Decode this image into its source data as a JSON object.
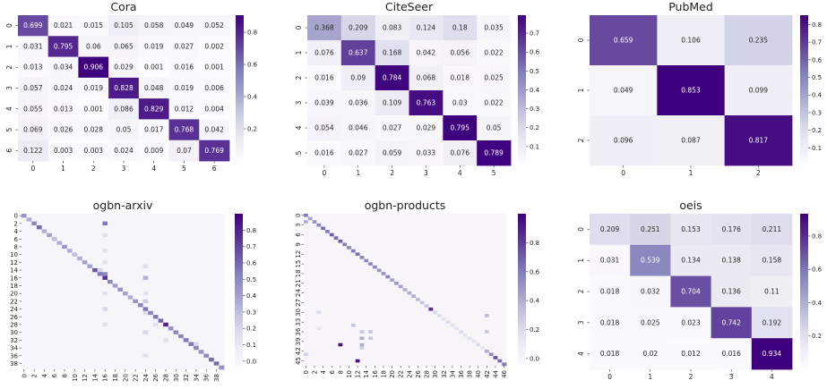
{
  "colors": {
    "low": "#fcfbfd",
    "high": "#3f007d"
  },
  "chart_data": [
    {
      "type": "heatmap",
      "title": "Cora",
      "x_labels": [
        "0",
        "1",
        "2",
        "3",
        "4",
        "5",
        "6"
      ],
      "y_labels": [
        "0",
        "1",
        "2",
        "3",
        "4",
        "5",
        "6"
      ],
      "show_values": true,
      "matrix": [
        [
          0.699,
          0.021,
          0.015,
          0.105,
          0.058,
          0.049,
          0.052
        ],
        [
          0.031,
          0.795,
          0.06,
          0.065,
          0.019,
          0.027,
          0.002
        ],
        [
          0.013,
          0.034,
          0.906,
          0.029,
          0.001,
          0.016,
          0.001
        ],
        [
          0.057,
          0.024,
          0.019,
          0.828,
          0.048,
          0.019,
          0.006
        ],
        [
          0.055,
          0.013,
          0.001,
          0.086,
          0.829,
          0.012,
          0.004
        ],
        [
          0.069,
          0.026,
          0.028,
          0.05,
          0.017,
          0.768,
          0.042
        ],
        [
          0.122,
          0.003,
          0.003,
          0.024,
          0.009,
          0.07,
          0.769
        ]
      ],
      "colorbar": {
        "range": [
          0.0,
          0.906
        ],
        "ticks": [
          "0.2",
          "0.4",
          "0.6",
          "0.8"
        ],
        "tick_values": [
          0.2,
          0.4,
          0.6,
          0.8
        ]
      }
    },
    {
      "type": "heatmap",
      "title": "CiteSeer",
      "x_labels": [
        "0",
        "1",
        "2",
        "3",
        "4",
        "5"
      ],
      "y_labels": [
        "0",
        "1",
        "2",
        "3",
        "4",
        "5"
      ],
      "show_values": true,
      "matrix": [
        [
          0.368,
          0.209,
          0.083,
          0.124,
          0.18,
          0.035
        ],
        [
          0.076,
          0.637,
          0.168,
          0.042,
          0.056,
          0.022
        ],
        [
          0.016,
          0.09,
          0.784,
          0.068,
          0.018,
          0.025
        ],
        [
          0.039,
          0.036,
          0.109,
          0.763,
          0.03,
          0.022
        ],
        [
          0.054,
          0.046,
          0.027,
          0.029,
          0.795,
          0.05
        ],
        [
          0.016,
          0.027,
          0.059,
          0.033,
          0.076,
          0.789
        ]
      ],
      "colorbar": {
        "range": [
          0.0,
          0.795
        ],
        "ticks": [
          "0.1",
          "0.2",
          "0.3",
          "0.4",
          "0.5",
          "0.6",
          "0.7"
        ],
        "tick_values": [
          0.1,
          0.2,
          0.3,
          0.4,
          0.5,
          0.6,
          0.7
        ]
      }
    },
    {
      "type": "heatmap",
      "title": "PubMed",
      "x_labels": [
        "0",
        "1",
        "2"
      ],
      "y_labels": [
        "0",
        "1",
        "2"
      ],
      "show_values": true,
      "matrix": [
        [
          0.659,
          0.106,
          0.235
        ],
        [
          0.049,
          0.853,
          0.099
        ],
        [
          0.096,
          0.087,
          0.817
        ]
      ],
      "colorbar": {
        "range": [
          0.0,
          0.853
        ],
        "ticks": [
          "0.1",
          "0.2",
          "0.3",
          "0.4",
          "0.5",
          "0.6",
          "0.7",
          "0.8"
        ],
        "tick_values": [
          0.1,
          0.2,
          0.3,
          0.4,
          0.5,
          0.6,
          0.7,
          0.8
        ]
      }
    },
    {
      "type": "heatmap",
      "title": "ogbn-arxiv",
      "size": 40,
      "x_labels": [
        "0",
        "2",
        "4",
        "6",
        "8",
        "10",
        "12",
        "14",
        "16",
        "18",
        "20",
        "22",
        "24",
        "26",
        "28",
        "30",
        "32",
        "34",
        "36",
        "38"
      ],
      "y_labels": [
        "0",
        "2",
        "4",
        "6",
        "8",
        "10",
        "12",
        "14",
        "16",
        "18",
        "20",
        "22",
        "24",
        "26",
        "28",
        "30",
        "32",
        "34",
        "36",
        "38"
      ],
      "label_step": 2,
      "show_values": false,
      "diagonal": [
        0.45,
        0.35,
        0.5,
        0.6,
        0.35,
        0.4,
        0.3,
        0.35,
        0.45,
        0.35,
        0.3,
        0.35,
        0.4,
        0.4,
        0.65,
        0.55,
        0.75,
        0.5,
        0.4,
        0.45,
        0.4,
        0.35,
        0.45,
        0.5,
        0.55,
        0.5,
        0.55,
        0.6,
        0.8,
        0.45,
        0.5,
        0.5,
        0.55,
        0.55,
        0.5,
        0.45,
        0.5,
        0.6,
        0.6,
        0.45
      ],
      "off_diagonal": [
        [
          2,
          16,
          0.55
        ],
        [
          5,
          16,
          0.15
        ],
        [
          9,
          16,
          0.15
        ],
        [
          12,
          16,
          0.15
        ],
        [
          15,
          16,
          0.5
        ],
        [
          20,
          16,
          0.15
        ],
        [
          24,
          16,
          0.2
        ],
        [
          28,
          16,
          0.15
        ],
        [
          13,
          24,
          0.15
        ],
        [
          16,
          24,
          0.35
        ],
        [
          20,
          24,
          0.15
        ],
        [
          22,
          24,
          0.25
        ],
        [
          25,
          24,
          0.15
        ],
        [
          30,
          24,
          0.2
        ],
        [
          36,
          24,
          0.15
        ],
        [
          28,
          26,
          0.15
        ],
        [
          32,
          28,
          0.15
        ],
        [
          33,
          34,
          0.2
        ],
        [
          14,
          15,
          0.2
        ]
      ],
      "colorbar": {
        "range": [
          -0.05,
          0.9
        ],
        "ticks": [
          "0.0",
          "0.1",
          "0.2",
          "0.3",
          "0.4",
          "0.5",
          "0.6",
          "0.7",
          "0.8"
        ],
        "tick_values": [
          0.0,
          0.1,
          0.2,
          0.3,
          0.4,
          0.5,
          0.6,
          0.7,
          0.8
        ]
      }
    },
    {
      "type": "heatmap",
      "title": "ogbn-products",
      "size": 47,
      "x_labels": [
        "0",
        "2",
        "4",
        "6",
        "8",
        "10",
        "12",
        "14",
        "16",
        "18",
        "20",
        "22",
        "24",
        "26",
        "28",
        "30",
        "32",
        "34",
        "36",
        "38",
        "40",
        "42",
        "44",
        "46"
      ],
      "y_labels": [
        "0",
        "3",
        "6",
        "9",
        "12",
        "15",
        "18",
        "21",
        "24",
        "27",
        "30",
        "33",
        "36",
        "39",
        "42",
        "45"
      ],
      "x_step": 2,
      "y_step": 3,
      "show_values": false,
      "diagonal": [
        0.6,
        0.45,
        0.5,
        0.55,
        0.65,
        0.6,
        0.7,
        0.65,
        0.7,
        0.6,
        0.55,
        0.6,
        0.65,
        0.55,
        0.55,
        0.55,
        0.55,
        0.5,
        0.5,
        0.55,
        0.45,
        0.5,
        0.45,
        0.4,
        0.4,
        0.4,
        0.35,
        0.3,
        0.3,
        0.85,
        0.2,
        0.2,
        0.15,
        0.2,
        0.15,
        0.15,
        0.2,
        0.15,
        0.15,
        0.15,
        0.2,
        0.15,
        0.4,
        0.55,
        0.75,
        0.65,
        0.6
      ],
      "off_diagonal": [
        [
          2,
          0,
          0.4
        ],
        [
          43,
          0,
          0.25
        ],
        [
          38,
          13,
          0.4
        ],
        [
          41,
          13,
          0.25
        ],
        [
          40,
          13,
          0.4
        ],
        [
          36,
          13,
          0.3
        ],
        [
          36,
          15,
          0.3
        ],
        [
          38,
          15,
          0.3
        ],
        [
          34,
          11,
          0.3
        ],
        [
          40,
          8,
          0.95
        ],
        [
          45,
          12,
          0.95
        ],
        [
          31,
          42,
          0.35
        ],
        [
          36,
          42,
          0.3
        ],
        [
          30,
          3,
          0.2
        ],
        [
          35,
          3,
          0.15
        ]
      ],
      "colorbar": {
        "range": [
          -0.05,
          1.0
        ],
        "ticks": [
          "0.0",
          "0.2",
          "0.4",
          "0.6",
          "0.8"
        ],
        "tick_values": [
          0.0,
          0.2,
          0.4,
          0.6,
          0.8
        ]
      }
    },
    {
      "type": "heatmap",
      "title": "oeis",
      "x_labels": [
        "0",
        "1",
        "2",
        "3",
        "4"
      ],
      "y_labels": [
        "0",
        "1",
        "2",
        "3",
        "4"
      ],
      "show_values": true,
      "matrix": [
        [
          0.209,
          0.251,
          0.153,
          0.176,
          0.211
        ],
        [
          0.031,
          0.539,
          0.134,
          0.138,
          0.158
        ],
        [
          0.018,
          0.032,
          0.704,
          0.136,
          0.11
        ],
        [
          0.018,
          0.025,
          0.023,
          0.742,
          0.192
        ],
        [
          0.018,
          0.02,
          0.012,
          0.016,
          0.934
        ]
      ],
      "colorbar": {
        "range": [
          0.0,
          0.934
        ],
        "ticks": [
          "0.2",
          "0.4",
          "0.6",
          "0.8"
        ],
        "tick_values": [
          0.2,
          0.4,
          0.6,
          0.8
        ]
      }
    }
  ]
}
